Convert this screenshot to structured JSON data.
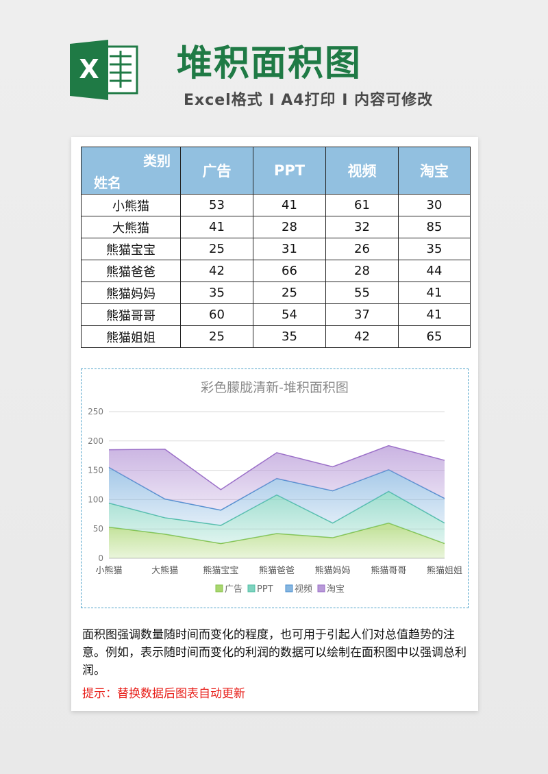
{
  "header": {
    "logo_letter": "X",
    "title": "堆积面积图",
    "subtitle": "Excel格式 I A4打印 I 内容可修改"
  },
  "table": {
    "corner_top": "类别",
    "corner_bottom": "姓名",
    "columns": [
      "广告",
      "PPT",
      "视频",
      "淘宝"
    ],
    "rows": [
      {
        "name": "小熊猫",
        "values": [
          "53",
          "41",
          "61",
          "30"
        ]
      },
      {
        "name": "大熊猫",
        "values": [
          "41",
          "28",
          "32",
          "85"
        ]
      },
      {
        "name": "熊猫宝宝",
        "values": [
          "25",
          "31",
          "26",
          "35"
        ]
      },
      {
        "name": "熊猫爸爸",
        "values": [
          "42",
          "66",
          "28",
          "44"
        ]
      },
      {
        "name": "熊猫妈妈",
        "values": [
          "35",
          "25",
          "55",
          "41"
        ]
      },
      {
        "name": "熊猫哥哥",
        "values": [
          "60",
          "54",
          "37",
          "41"
        ]
      },
      {
        "name": "熊猫姐姐",
        "values": [
          "25",
          "35",
          "42",
          "65"
        ]
      }
    ]
  },
  "chart_data": {
    "type": "area",
    "stacked": true,
    "title": "彩色朦胧清新-堆积面积图",
    "categories": [
      "小熊猫",
      "大熊猫",
      "熊猫宝宝",
      "熊猫爸爸",
      "熊猫妈妈",
      "熊猫哥哥",
      "熊猫姐姐"
    ],
    "series": [
      {
        "name": "广告",
        "values": [
          53,
          41,
          25,
          42,
          35,
          60,
          25
        ],
        "color": "#a9d66f",
        "stroke": "#86c24a"
      },
      {
        "name": "PPT",
        "values": [
          41,
          28,
          31,
          66,
          25,
          54,
          35
        ],
        "color": "#7fd3bf",
        "stroke": "#4fbfa6"
      },
      {
        "name": "视频",
        "values": [
          61,
          32,
          26,
          28,
          55,
          37,
          42
        ],
        "color": "#86b6e0",
        "stroke": "#4b8fcf"
      },
      {
        "name": "淘宝",
        "values": [
          30,
          85,
          35,
          44,
          41,
          41,
          65
        ],
        "color": "#b89ad8",
        "stroke": "#9b6fc8"
      }
    ],
    "ylim": [
      0,
      250
    ],
    "yticks": [
      0,
      50,
      100,
      150,
      200,
      250
    ],
    "grid": true,
    "legend": "bottom"
  },
  "description": "面积图强调数量随时间而变化的程度，也可用于引起人们对总值趋势的注意。例如，表示随时间而变化的利润的数据可以绘制在面积图中以强调总利润。",
  "tip": "提示：替换数据后图表自动更新"
}
